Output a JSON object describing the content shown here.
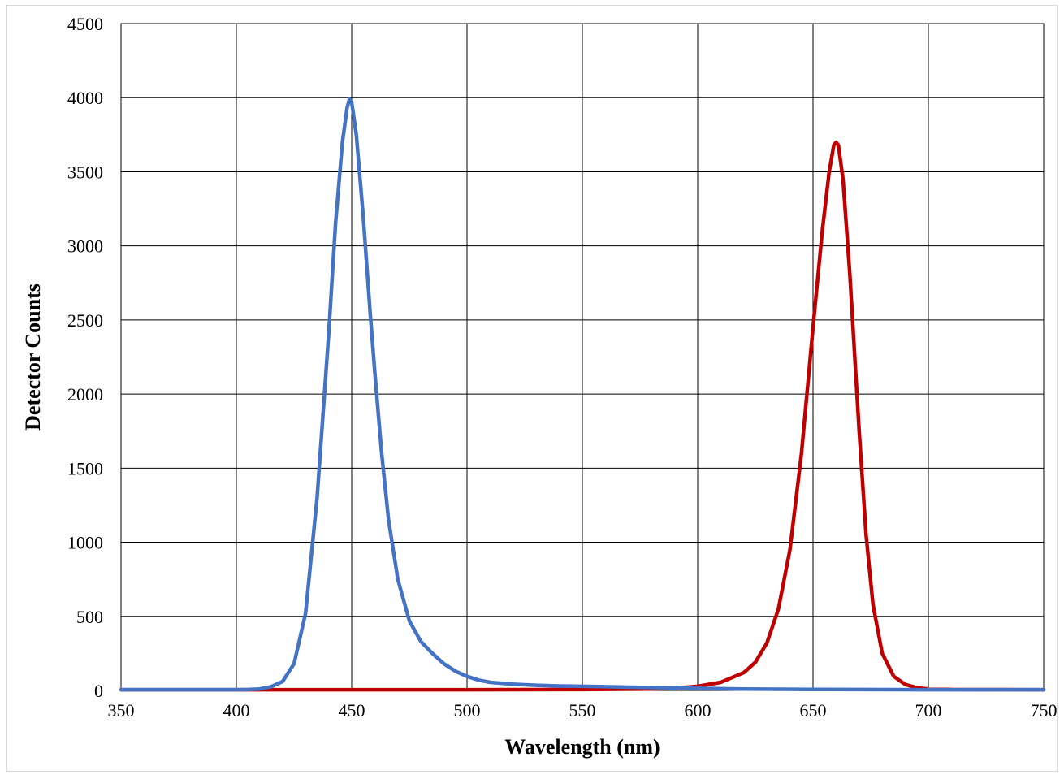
{
  "chart_data": {
    "type": "line",
    "title": "",
    "xlabel": "Wavelength (nm)",
    "ylabel": "Detector Counts",
    "xlim": [
      350,
      750
    ],
    "ylim": [
      0,
      4500
    ],
    "xticks": [
      350,
      400,
      450,
      500,
      550,
      600,
      650,
      700,
      750
    ],
    "yticks": [
      0,
      500,
      1000,
      1500,
      2000,
      2500,
      3000,
      3500,
      4000,
      4500
    ],
    "grid": true,
    "legend": "none",
    "series": [
      {
        "color": "#4472c4",
        "x": [
          350,
          400,
          405,
          410,
          415,
          420,
          425,
          430,
          435,
          440,
          443,
          446,
          448,
          449,
          450,
          452,
          455,
          458,
          460,
          463,
          466,
          470,
          475,
          480,
          485,
          490,
          495,
          500,
          505,
          510,
          520,
          530,
          540,
          550,
          560,
          570,
          580,
          590,
          600,
          620,
          650,
          700,
          750
        ],
        "y": [
          5,
          5,
          6,
          10,
          25,
          60,
          180,
          520,
          1300,
          2400,
          3150,
          3700,
          3930,
          3990,
          3970,
          3750,
          3200,
          2550,
          2150,
          1600,
          1150,
          750,
          470,
          330,
          250,
          180,
          130,
          95,
          70,
          55,
          42,
          35,
          30,
          28,
          25,
          22,
          20,
          17,
          14,
          10,
          7,
          5,
          5
        ]
      },
      {
        "color": "#c00000",
        "x": [
          350,
          400,
          500,
          550,
          580,
          590,
          600,
          610,
          620,
          625,
          630,
          635,
          640,
          645,
          650,
          654,
          657,
          659,
          660,
          661,
          663,
          666,
          670,
          673,
          676,
          680,
          685,
          690,
          695,
          700,
          710,
          750
        ],
        "y": [
          5,
          5,
          5,
          6,
          10,
          15,
          28,
          55,
          120,
          190,
          320,
          550,
          950,
          1600,
          2450,
          3100,
          3500,
          3680,
          3700,
          3680,
          3450,
          2800,
          1750,
          1050,
          580,
          250,
          95,
          40,
          18,
          10,
          6,
          5
        ]
      }
    ]
  }
}
